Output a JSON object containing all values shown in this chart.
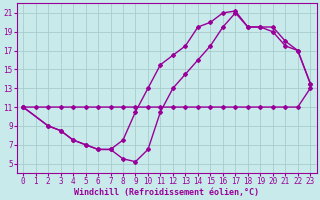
{
  "background_color": "#c8eaea",
  "grid_color": "#a8cccc",
  "line_color": "#990099",
  "marker": "D",
  "markersize": 2,
  "linewidth": 1.0,
  "xlabel": "Windchill (Refroidissement éolien,°C)",
  "xlabel_fontsize": 6,
  "tick_fontsize": 5.5,
  "xlim": [
    -0.5,
    23.5
  ],
  "ylim": [
    4,
    22
  ],
  "yticks": [
    5,
    7,
    9,
    11,
    13,
    15,
    17,
    19,
    21
  ],
  "xticks": [
    0,
    1,
    2,
    3,
    4,
    5,
    6,
    7,
    8,
    9,
    10,
    11,
    12,
    13,
    14,
    15,
    16,
    17,
    18,
    19,
    20,
    21,
    22,
    23
  ],
  "series1_x": [
    0,
    1,
    2,
    3,
    4,
    5,
    6,
    7,
    8,
    9,
    10,
    11,
    12,
    13,
    14,
    15,
    16,
    17,
    18,
    19,
    20,
    21,
    22,
    23
  ],
  "series1_y": [
    11,
    11,
    11,
    11,
    11,
    11,
    11,
    11,
    11,
    11,
    11,
    11,
    11,
    11,
    11,
    11,
    11,
    11,
    11,
    11,
    11,
    11,
    11,
    13
  ],
  "series2_x": [
    0,
    2,
    3,
    4,
    5,
    6,
    7,
    8,
    9,
    10,
    11,
    12,
    13,
    14,
    15,
    16,
    17,
    18,
    19,
    20,
    21,
    22,
    23
  ],
  "series2_y": [
    11,
    9,
    8.5,
    7.5,
    7,
    6.5,
    6.5,
    5.5,
    5.2,
    6.5,
    10.5,
    13,
    14.5,
    16,
    17.5,
    19.5,
    21,
    19.5,
    19.5,
    19.5,
    18.0,
    17.0,
    13.5
  ],
  "series3_x": [
    0,
    2,
    3,
    4,
    5,
    6,
    7,
    8,
    9,
    10,
    11,
    12,
    13,
    14,
    15,
    16,
    17,
    18,
    19,
    20,
    21,
    22,
    23
  ],
  "series3_y": [
    11,
    9,
    8.5,
    7.5,
    7,
    6.5,
    6.5,
    7.5,
    10.5,
    13,
    15.5,
    16.5,
    17.5,
    19.5,
    20,
    21,
    21.2,
    19.5,
    19.5,
    19.0,
    17.5,
    17.0,
    13.5
  ]
}
